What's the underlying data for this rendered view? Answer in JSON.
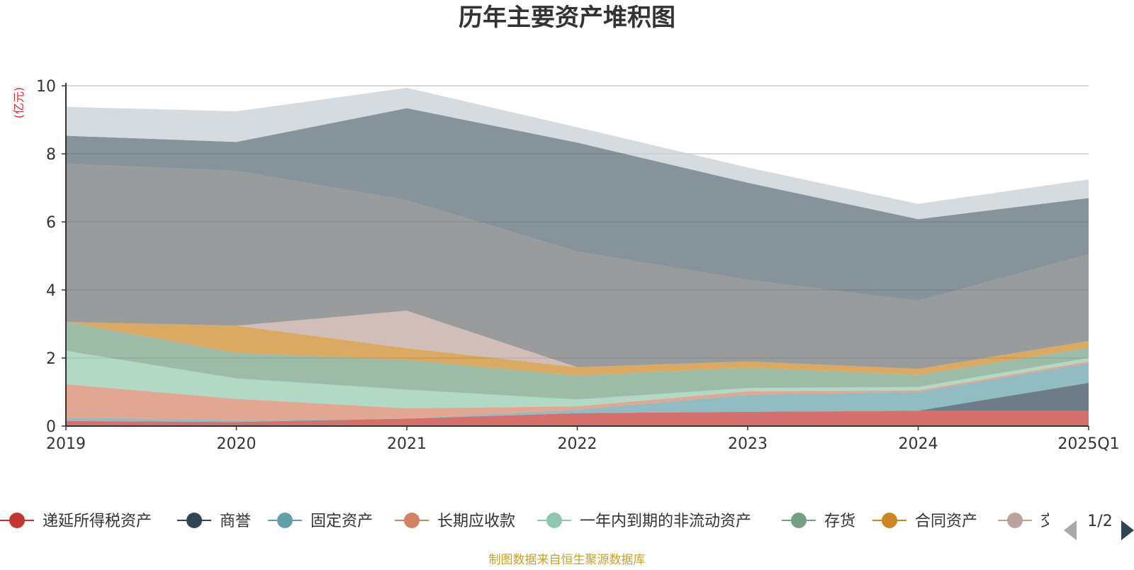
{
  "chart_data": {
    "type": "area",
    "stacked": true,
    "title": "历年主要资产堆积图",
    "unit_label": "(亿元)",
    "xlabel": "",
    "ylabel": "",
    "ylim": [
      0,
      10
    ],
    "y_ticks": [
      0,
      2,
      4,
      6,
      8,
      10
    ],
    "grid": true,
    "legend_position": "bottom",
    "categories": [
      "2019",
      "2020",
      "2021",
      "2022",
      "2023",
      "2024",
      "2025Q1"
    ],
    "series": [
      {
        "name": "递延所得税资产",
        "color": "#c23531",
        "values": [
          0.15,
          0.12,
          0.22,
          0.38,
          0.42,
          0.45,
          0.45
        ]
      },
      {
        "name": "商誉",
        "color": "#2f4554",
        "values": [
          0.0,
          0.0,
          0.0,
          0.0,
          0.0,
          0.0,
          0.82
        ]
      },
      {
        "name": "固定资产",
        "color": "#61a0a8",
        "values": [
          0.1,
          0.05,
          0.0,
          0.1,
          0.5,
          0.55,
          0.58
        ]
      },
      {
        "name": "长期应收款",
        "color": "#d48265",
        "values": [
          0.98,
          0.63,
          0.3,
          0.1,
          0.1,
          0.05,
          0.05
        ]
      },
      {
        "name": "一年内到期的非流动资产",
        "color": "#91c7ae",
        "values": [
          0.98,
          0.6,
          0.55,
          0.2,
          0.1,
          0.1,
          0.1
        ]
      },
      {
        "name": "存货",
        "color": "#749f83",
        "values": [
          0.85,
          0.75,
          0.87,
          0.7,
          0.6,
          0.35,
          0.3
        ]
      },
      {
        "name": "合同资产",
        "color": "#ca8622",
        "values": [
          0.0,
          0.8,
          0.35,
          0.25,
          0.18,
          0.18,
          0.2
        ]
      },
      {
        "name": "交易性金融资产",
        "color": "#bda29a",
        "values": [
          0.0,
          0.0,
          1.1,
          0.0,
          0.0,
          0.0,
          0.0
        ]
      },
      {
        "name": "",
        "color": "#6e7074",
        "values": [
          4.65,
          4.55,
          3.25,
          3.4,
          2.4,
          2.0,
          2.55
        ]
      },
      {
        "name": "",
        "color": "#546570",
        "values": [
          0.82,
          0.85,
          2.7,
          3.2,
          2.85,
          2.4,
          1.65
        ]
      },
      {
        "name": "",
        "color": "#c4ccd3",
        "values": [
          0.85,
          0.9,
          0.6,
          0.45,
          0.45,
          0.45,
          0.55
        ]
      }
    ],
    "legend_page": "1/2",
    "source": "制图数据来自恒生聚源数据库"
  }
}
